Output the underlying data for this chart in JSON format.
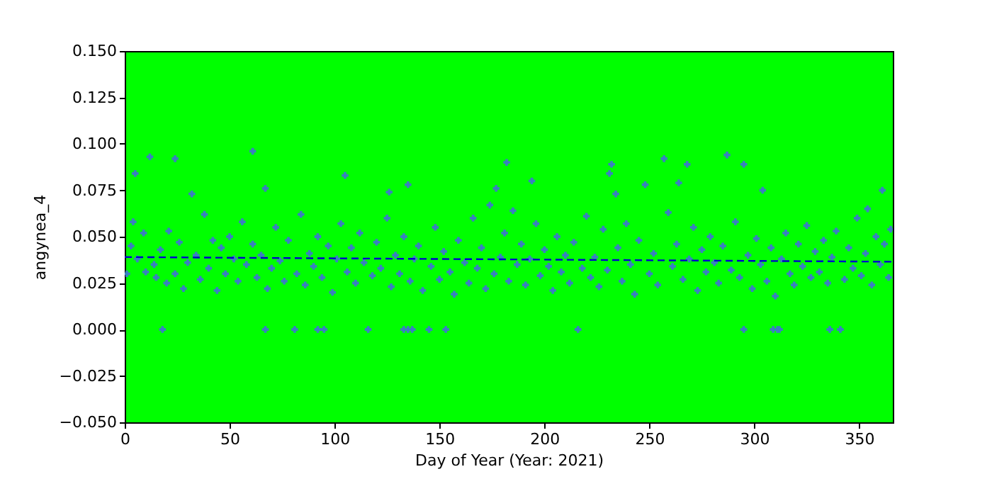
{
  "chart_data": {
    "type": "scatter",
    "xlabel": "Day of Year (Year: 2021)",
    "ylabel": "angynea_4",
    "xlim": [
      0,
      366
    ],
    "xticks": [
      0,
      50,
      100,
      150,
      200,
      250,
      300,
      350
    ],
    "ylim": [
      -0.05,
      0.15
    ],
    "yticks": [
      {
        "value": -0.05,
        "label": "−0.050"
      },
      {
        "value": -0.025,
        "label": "−0.025"
      },
      {
        "value": 0,
        "label": "0.000"
      },
      {
        "value": 0.025,
        "label": "0.025"
      },
      {
        "value": 0.05,
        "label": "0.050"
      },
      {
        "value": 0.075,
        "label": "0.075"
      },
      {
        "value": 0.1,
        "label": "0.100"
      },
      {
        "value": 0.125,
        "label": "0.125"
      },
      {
        "value": 0.15,
        "label": "0.150"
      }
    ],
    "grid": false,
    "series": [
      {
        "color": "#3a7fc1",
        "marker": "cross",
        "x": [
          1,
          3,
          4,
          5,
          6,
          9,
          10,
          12,
          14,
          15,
          17,
          18,
          20,
          21,
          24,
          24,
          26,
          28,
          30,
          32,
          34,
          36,
          38,
          40,
          42,
          44,
          46,
          48,
          50,
          52,
          54,
          56,
          58,
          61,
          61,
          63,
          65,
          67,
          67,
          68,
          70,
          72,
          74,
          76,
          78,
          81,
          82,
          84,
          86,
          88,
          90,
          92,
          92,
          94,
          95,
          97,
          99,
          101,
          103,
          105,
          106,
          108,
          110,
          112,
          114,
          116,
          118,
          120,
          122,
          125,
          126,
          127,
          129,
          131,
          133,
          133,
          135,
          135,
          136,
          137,
          138,
          140,
          142,
          145,
          146,
          148,
          150,
          152,
          153,
          155,
          157,
          159,
          162,
          164,
          166,
          168,
          170,
          172,
          174,
          176,
          177,
          179,
          181,
          182,
          183,
          185,
          187,
          189,
          191,
          193,
          194,
          196,
          198,
          200,
          202,
          204,
          206,
          208,
          210,
          212,
          214,
          216,
          218,
          220,
          222,
          224,
          226,
          228,
          230,
          231,
          232,
          234,
          235,
          237,
          239,
          241,
          243,
          245,
          248,
          250,
          252,
          254,
          257,
          259,
          261,
          263,
          264,
          266,
          268,
          269,
          271,
          273,
          275,
          277,
          279,
          281,
          283,
          285,
          287,
          289,
          291,
          293,
          295,
          295,
          297,
          299,
          301,
          303,
          304,
          306,
          308,
          309,
          310,
          311,
          312,
          313,
          315,
          317,
          319,
          321,
          323,
          325,
          327,
          329,
          331,
          333,
          335,
          336,
          337,
          339,
          341,
          343,
          345,
          347,
          349,
          351,
          353,
          354,
          356,
          358,
          360,
          361,
          362,
          364,
          365
        ],
        "values": [
          0.03,
          0.045,
          0.058,
          0.084,
          0.038,
          0.052,
          0.031,
          0.093,
          0.035,
          0.028,
          0.043,
          0,
          0.025,
          0.053,
          0.03,
          0.092,
          0.047,
          0.022,
          0.036,
          0.073,
          0.04,
          0.027,
          0.062,
          0.033,
          0.048,
          0.021,
          0.044,
          0.03,
          0.05,
          0.038,
          0.026,
          0.058,
          0.035,
          0.046,
          0.096,
          0.028,
          0.04,
          0.076,
          0,
          0.022,
          0.033,
          0.055,
          0.037,
          0.026,
          0.048,
          0,
          0.03,
          0.062,
          0.024,
          0.041,
          0.034,
          0.05,
          0,
          0.028,
          0,
          0.045,
          0.02,
          0.038,
          0.057,
          0.083,
          0.031,
          0.044,
          0.025,
          0.052,
          0.036,
          0,
          0.029,
          0.047,
          0.033,
          0.06,
          0.074,
          0.023,
          0.04,
          0.03,
          0.05,
          0,
          0.078,
          0,
          0.026,
          0,
          0.038,
          0.045,
          0.021,
          0,
          0.034,
          0.055,
          0.027,
          0.042,
          0,
          0.031,
          0.019,
          0.048,
          0.036,
          0.025,
          0.06,
          0.033,
          0.044,
          0.022,
          0.067,
          0.03,
          0.076,
          0.039,
          0.052,
          0.09,
          0.026,
          0.064,
          0.035,
          0.046,
          0.024,
          0.038,
          0.08,
          0.057,
          0.029,
          0.043,
          0.034,
          0.021,
          0.05,
          0.031,
          0.04,
          0.025,
          0.047,
          0,
          0.033,
          0.061,
          0.028,
          0.039,
          0.023,
          0.054,
          0.032,
          0.084,
          0.089,
          0.073,
          0.044,
          0.026,
          0.057,
          0.035,
          0.019,
          0.048,
          0.078,
          0.03,
          0.041,
          0.024,
          0.092,
          0.063,
          0.034,
          0.046,
          0.079,
          0.027,
          0.089,
          0.038,
          0.055,
          0.021,
          0.043,
          0.031,
          0.05,
          0.036,
          0.025,
          0.045,
          0.094,
          0.032,
          0.058,
          0.028,
          0.089,
          0,
          0.04,
          0.022,
          0.049,
          0.035,
          0.075,
          0.026,
          0.044,
          0,
          0.018,
          0,
          0,
          0.038,
          0.052,
          0.03,
          0.024,
          0.046,
          0.034,
          0.056,
          0.028,
          0.042,
          0.031,
          0.048,
          0.025,
          0,
          0.039,
          0.053,
          0,
          0.027,
          0.044,
          0.033,
          0.06,
          0.029,
          0.041,
          0.065,
          0.024,
          0.05,
          0.035,
          0.075,
          0.046,
          0.028,
          0.054
        ]
      },
      {
        "type": "line",
        "color": "#0000cc",
        "line_style": "dashed",
        "x": [
          0,
          366
        ],
        "values": [
          0.039,
          0.0365
        ]
      }
    ]
  }
}
